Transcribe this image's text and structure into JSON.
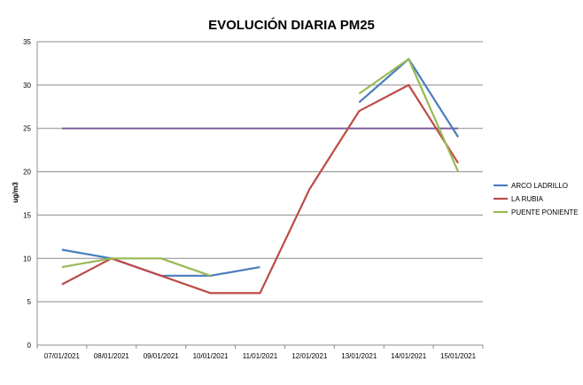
{
  "chart_data": {
    "type": "line",
    "title": "EVOLUCIÓN DIARIA PM25",
    "xlabel": "",
    "ylabel": "ug/m3",
    "ylim": [
      0,
      35
    ],
    "yticks": [
      0,
      5,
      10,
      15,
      20,
      25,
      30,
      35
    ],
    "grid": true,
    "legend_position": "right",
    "categories": [
      "07/01/2021",
      "08/01/2021",
      "09/01/2021",
      "10/01/2021",
      "11/01/2021",
      "12/01/2021",
      "13/01/2021",
      "14/01/2021",
      "15/01/2021"
    ],
    "series": [
      {
        "name": "ARCO LADRILLO",
        "color": "#4a7ebb",
        "values": [
          11,
          10,
          8,
          8,
          9,
          null,
          28,
          33,
          24
        ]
      },
      {
        "name": "LA RUBIA",
        "color": "#be4b48",
        "values": [
          7,
          10,
          8,
          6,
          6,
          18,
          27,
          30,
          21
        ]
      },
      {
        "name": "PUENTE PONIENTE",
        "color": "#98b954",
        "values": [
          9,
          10,
          10,
          8,
          null,
          null,
          29,
          33,
          20
        ]
      }
    ],
    "reference_line": {
      "value": 25,
      "color": "#7d60a0"
    }
  }
}
